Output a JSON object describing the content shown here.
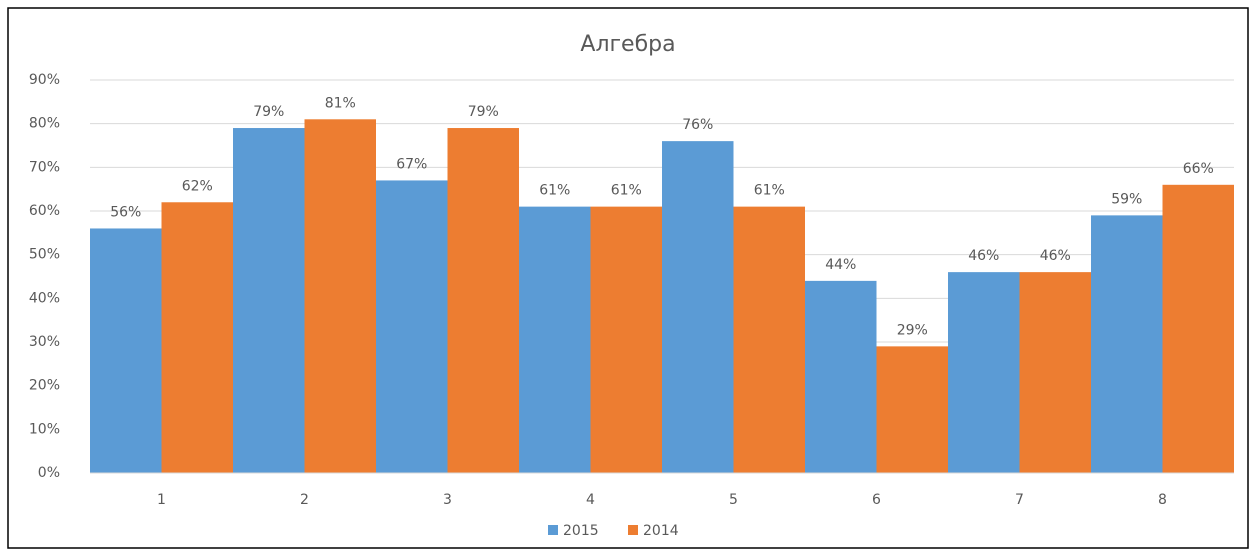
{
  "chart_data": {
    "type": "bar",
    "title": "Алгебра",
    "categories": [
      "1",
      "2",
      "3",
      "4",
      "5",
      "6",
      "7",
      "8"
    ],
    "series": [
      {
        "name": "2015",
        "color": "#5b9bd5",
        "values": [
          56,
          79,
          67,
          61,
          76,
          44,
          46,
          59
        ],
        "value_labels": [
          "56%",
          "79%",
          "67%",
          "61%",
          "76%",
          "44%",
          "46%",
          "59%"
        ]
      },
      {
        "name": "2014",
        "color": "#ed7d31",
        "values": [
          62,
          81,
          79,
          61,
          61,
          29,
          46,
          66
        ],
        "value_labels": [
          "62%",
          "81%",
          "79%",
          "61%",
          "61%",
          "29%",
          "46%",
          "66%"
        ]
      }
    ],
    "ylim": [
      0,
      90
    ],
    "yticks": [
      {
        "value": 0,
        "label": "0%"
      },
      {
        "value": 10,
        "label": "10%"
      },
      {
        "value": 20,
        "label": "20%"
      },
      {
        "value": 30,
        "label": "30%"
      },
      {
        "value": 40,
        "label": "40%"
      },
      {
        "value": 50,
        "label": "50%"
      },
      {
        "value": 60,
        "label": "60%"
      },
      {
        "value": 70,
        "label": "70%"
      },
      {
        "value": 80,
        "label": "80%"
      },
      {
        "value": 90,
        "label": "90%"
      }
    ],
    "grid": true,
    "legend": "bottom"
  }
}
